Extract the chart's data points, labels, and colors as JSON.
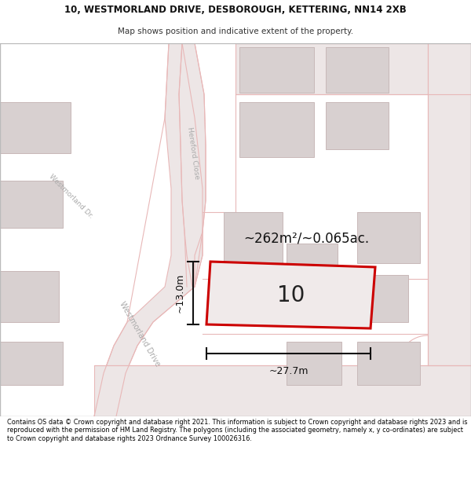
{
  "title_line1": "10, WESTMORLAND DRIVE, DESBOROUGH, KETTERING, NN14 2XB",
  "title_line2": "Map shows position and indicative extent of the property.",
  "footer_text": "Contains OS data © Crown copyright and database right 2021. This information is subject to Crown copyright and database rights 2023 and is reproduced with the permission of HM Land Registry. The polygons (including the associated geometry, namely x, y co-ordinates) are subject to Crown copyright and database rights 2023 Ordnance Survey 100026316.",
  "area_label": "~262m²/~0.065ac.",
  "number_label": "10",
  "width_label": "~27.7m",
  "height_label": "~13.0m",
  "map_bg": "#f5f2f2",
  "road_color": "#e8b8b8",
  "road_fill": "#ede6e6",
  "building_fill": "#d8d0d0",
  "building_edge": "#c8b8b8",
  "plot_outline_color": "#cc0000",
  "plot_fill": "#f0e8e8",
  "road_label_color": "#aaaaaa",
  "title_color": "#111111",
  "subtitle_color": "#333333",
  "footer_color": "#111111",
  "dim_line_color": "#111111",
  "map_border_color": "#cccccc"
}
